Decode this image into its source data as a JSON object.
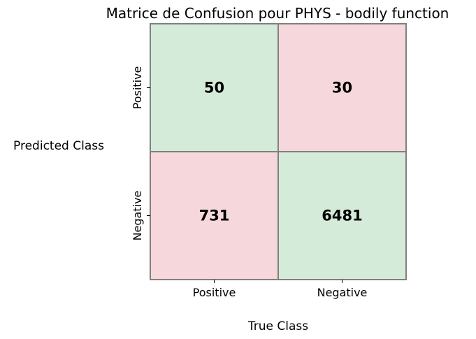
{
  "chart_data": {
    "type": "heatmap",
    "title": "Matrice de Confusion pour PHYS - bodily function",
    "xlabel": "True Class",
    "ylabel": "Predicted Class",
    "x_categories": [
      "Positive",
      "Negative"
    ],
    "y_categories": [
      "Positive",
      "Negative"
    ],
    "cells": [
      [
        50,
        30
      ],
      [
        731,
        6481
      ]
    ],
    "cell_colors": [
      [
        "#d4ebd9",
        "#f6d7db"
      ],
      [
        "#f6d7db",
        "#d4ebd9"
      ]
    ],
    "border_color": "#808080"
  }
}
